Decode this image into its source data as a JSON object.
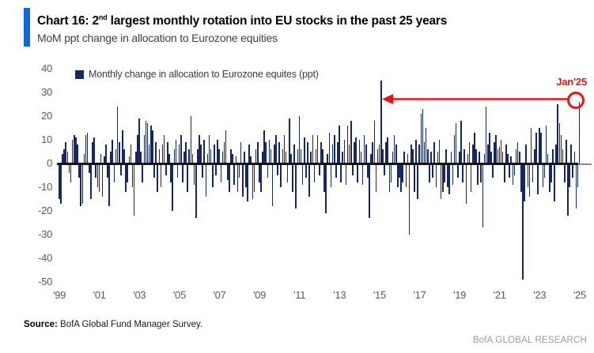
{
  "header": {
    "title_prefix": "Chart 16: 2",
    "title_sup": "nd",
    "title_rest": " largest monthly rotation into EU stocks in the past 25 years",
    "subtitle": "MoM ppt change in allocation to Eurozone equities"
  },
  "legend": {
    "label": "Monthly change in allocation to Eurozone equites (ppt)"
  },
  "footer": {
    "source_label": "Source:",
    "source_text": " BofA Global Fund Manager Survey.",
    "brand": "BofA GLOBAL RESEARCH"
  },
  "colors": {
    "bar_navy": "#16266a",
    "accent_blue": "#1268d6",
    "annotation_red": "#ee1111",
    "axis_text_gray": "#595959",
    "brand_gray": "#9a9a9a"
  },
  "chart_data": {
    "type": "bar",
    "title": "Chart 16: 2nd largest monthly rotation into EU stocks in the past 25 years",
    "subtitle": "MoM ppt change in allocation to Eurozone equities",
    "ylabel": "MoM ppt change in allocation to Eurozone equities (ppt)",
    "ylim": [
      -50,
      40
    ],
    "yticks": [
      40,
      30,
      20,
      10,
      0,
      -10,
      -20,
      -30,
      -40,
      -50
    ],
    "grid": false,
    "legend_position": "top-left",
    "frequency": "monthly",
    "start": "1999-01",
    "end": "2025-01",
    "xtick_labels": [
      "'99",
      "'01",
      "'03",
      "'05",
      "'07",
      "'09",
      "'11",
      "'13",
      "'15",
      "'17",
      "'19",
      "'21",
      "'23",
      "'25"
    ],
    "xtick_months": [
      0,
      24,
      48,
      72,
      96,
      120,
      144,
      168,
      192,
      216,
      240,
      264,
      288,
      312
    ],
    "annotation": {
      "label": "Jan'25",
      "month": "2025-01",
      "value": 26,
      "note": "circled last bar, red arrow drawn from the 2015 record bar (+35) to Jan'25"
    },
    "notable_points": {
      "largest_positive": {
        "month": "2015-02",
        "value": 35
      },
      "largest_negative": {
        "month": "2022-03",
        "value": -49
      },
      "latest": {
        "month": "2025-01",
        "value": 26
      }
    },
    "monthly_values": [
      -15,
      -17,
      4,
      6,
      9,
      5,
      -4,
      -8,
      10,
      12,
      11,
      8,
      -6,
      -18,
      -17,
      4,
      12,
      13,
      -4,
      -15,
      9,
      11,
      -6,
      -10,
      -12,
      4,
      -14,
      3,
      8,
      -6,
      -18,
      5,
      10,
      -8,
      6,
      24,
      9,
      -5,
      14,
      6,
      -12,
      -8,
      3,
      8,
      -10,
      -22,
      5,
      12,
      19,
      5,
      -8,
      12,
      18,
      17,
      8,
      16,
      14,
      -6,
      9,
      -12,
      6,
      -10,
      8,
      12,
      -5,
      9,
      4,
      -8,
      -20,
      6,
      10,
      -6,
      8,
      12,
      -8,
      5,
      9,
      -12,
      6,
      20,
      4,
      -9,
      -23,
      6,
      12,
      8,
      -6,
      10,
      -14,
      4,
      12,
      6,
      -10,
      8,
      -5,
      10,
      6,
      -8,
      5,
      9,
      14,
      -7,
      -12,
      6,
      4,
      -9,
      3,
      -12,
      -6,
      9,
      -14,
      5,
      -10,
      -16,
      8,
      3,
      -15,
      -12,
      6,
      9,
      -8,
      -12,
      5,
      14,
      9,
      -6,
      10,
      6,
      -18,
      8,
      12,
      -5,
      9,
      -10,
      6,
      12,
      5,
      -8,
      19,
      4,
      -12,
      8,
      -19,
      6,
      20,
      6,
      -9,
      11,
      -6,
      9,
      -14,
      5,
      12,
      -8,
      6,
      12,
      -5,
      9,
      6,
      -12,
      -21,
      4,
      13,
      -10,
      8,
      12,
      -6,
      9,
      16,
      -8,
      5,
      10,
      -9,
      16,
      8,
      18,
      -5,
      9,
      11,
      -8,
      10,
      5,
      -9,
      12,
      8,
      -6,
      -23,
      4,
      9,
      18,
      -12,
      6,
      8,
      35,
      6,
      -5,
      9,
      11,
      -12,
      -8,
      5,
      12,
      8,
      -10,
      -6,
      -12,
      -8,
      5,
      -10,
      4,
      -30,
      8,
      6,
      -12,
      10,
      -15,
      8,
      21,
      23,
      9,
      15,
      6,
      -8,
      5,
      -6,
      9,
      -10,
      5,
      10,
      -15,
      -12,
      -8,
      6,
      -10,
      -13,
      5,
      -9,
      12,
      17,
      -6,
      5,
      18,
      -8,
      6,
      -17,
      4,
      9,
      -12,
      8,
      13,
      6,
      -9,
      5,
      -8,
      -27,
      4,
      24,
      8,
      13,
      5,
      -6,
      9,
      12,
      6,
      7,
      10,
      5,
      -8,
      8,
      4,
      -6,
      3,
      -9,
      -5,
      6,
      9,
      5,
      -12,
      -49,
      -16,
      8,
      -10,
      -14,
      15,
      -8,
      6,
      13,
      -13,
      15,
      13,
      -10,
      -6,
      16,
      4,
      -12,
      -8,
      6,
      -16,
      8,
      25,
      17,
      12,
      6,
      -8,
      10,
      -22,
      -10,
      8,
      -6,
      5,
      -19,
      -10,
      26
    ]
  }
}
